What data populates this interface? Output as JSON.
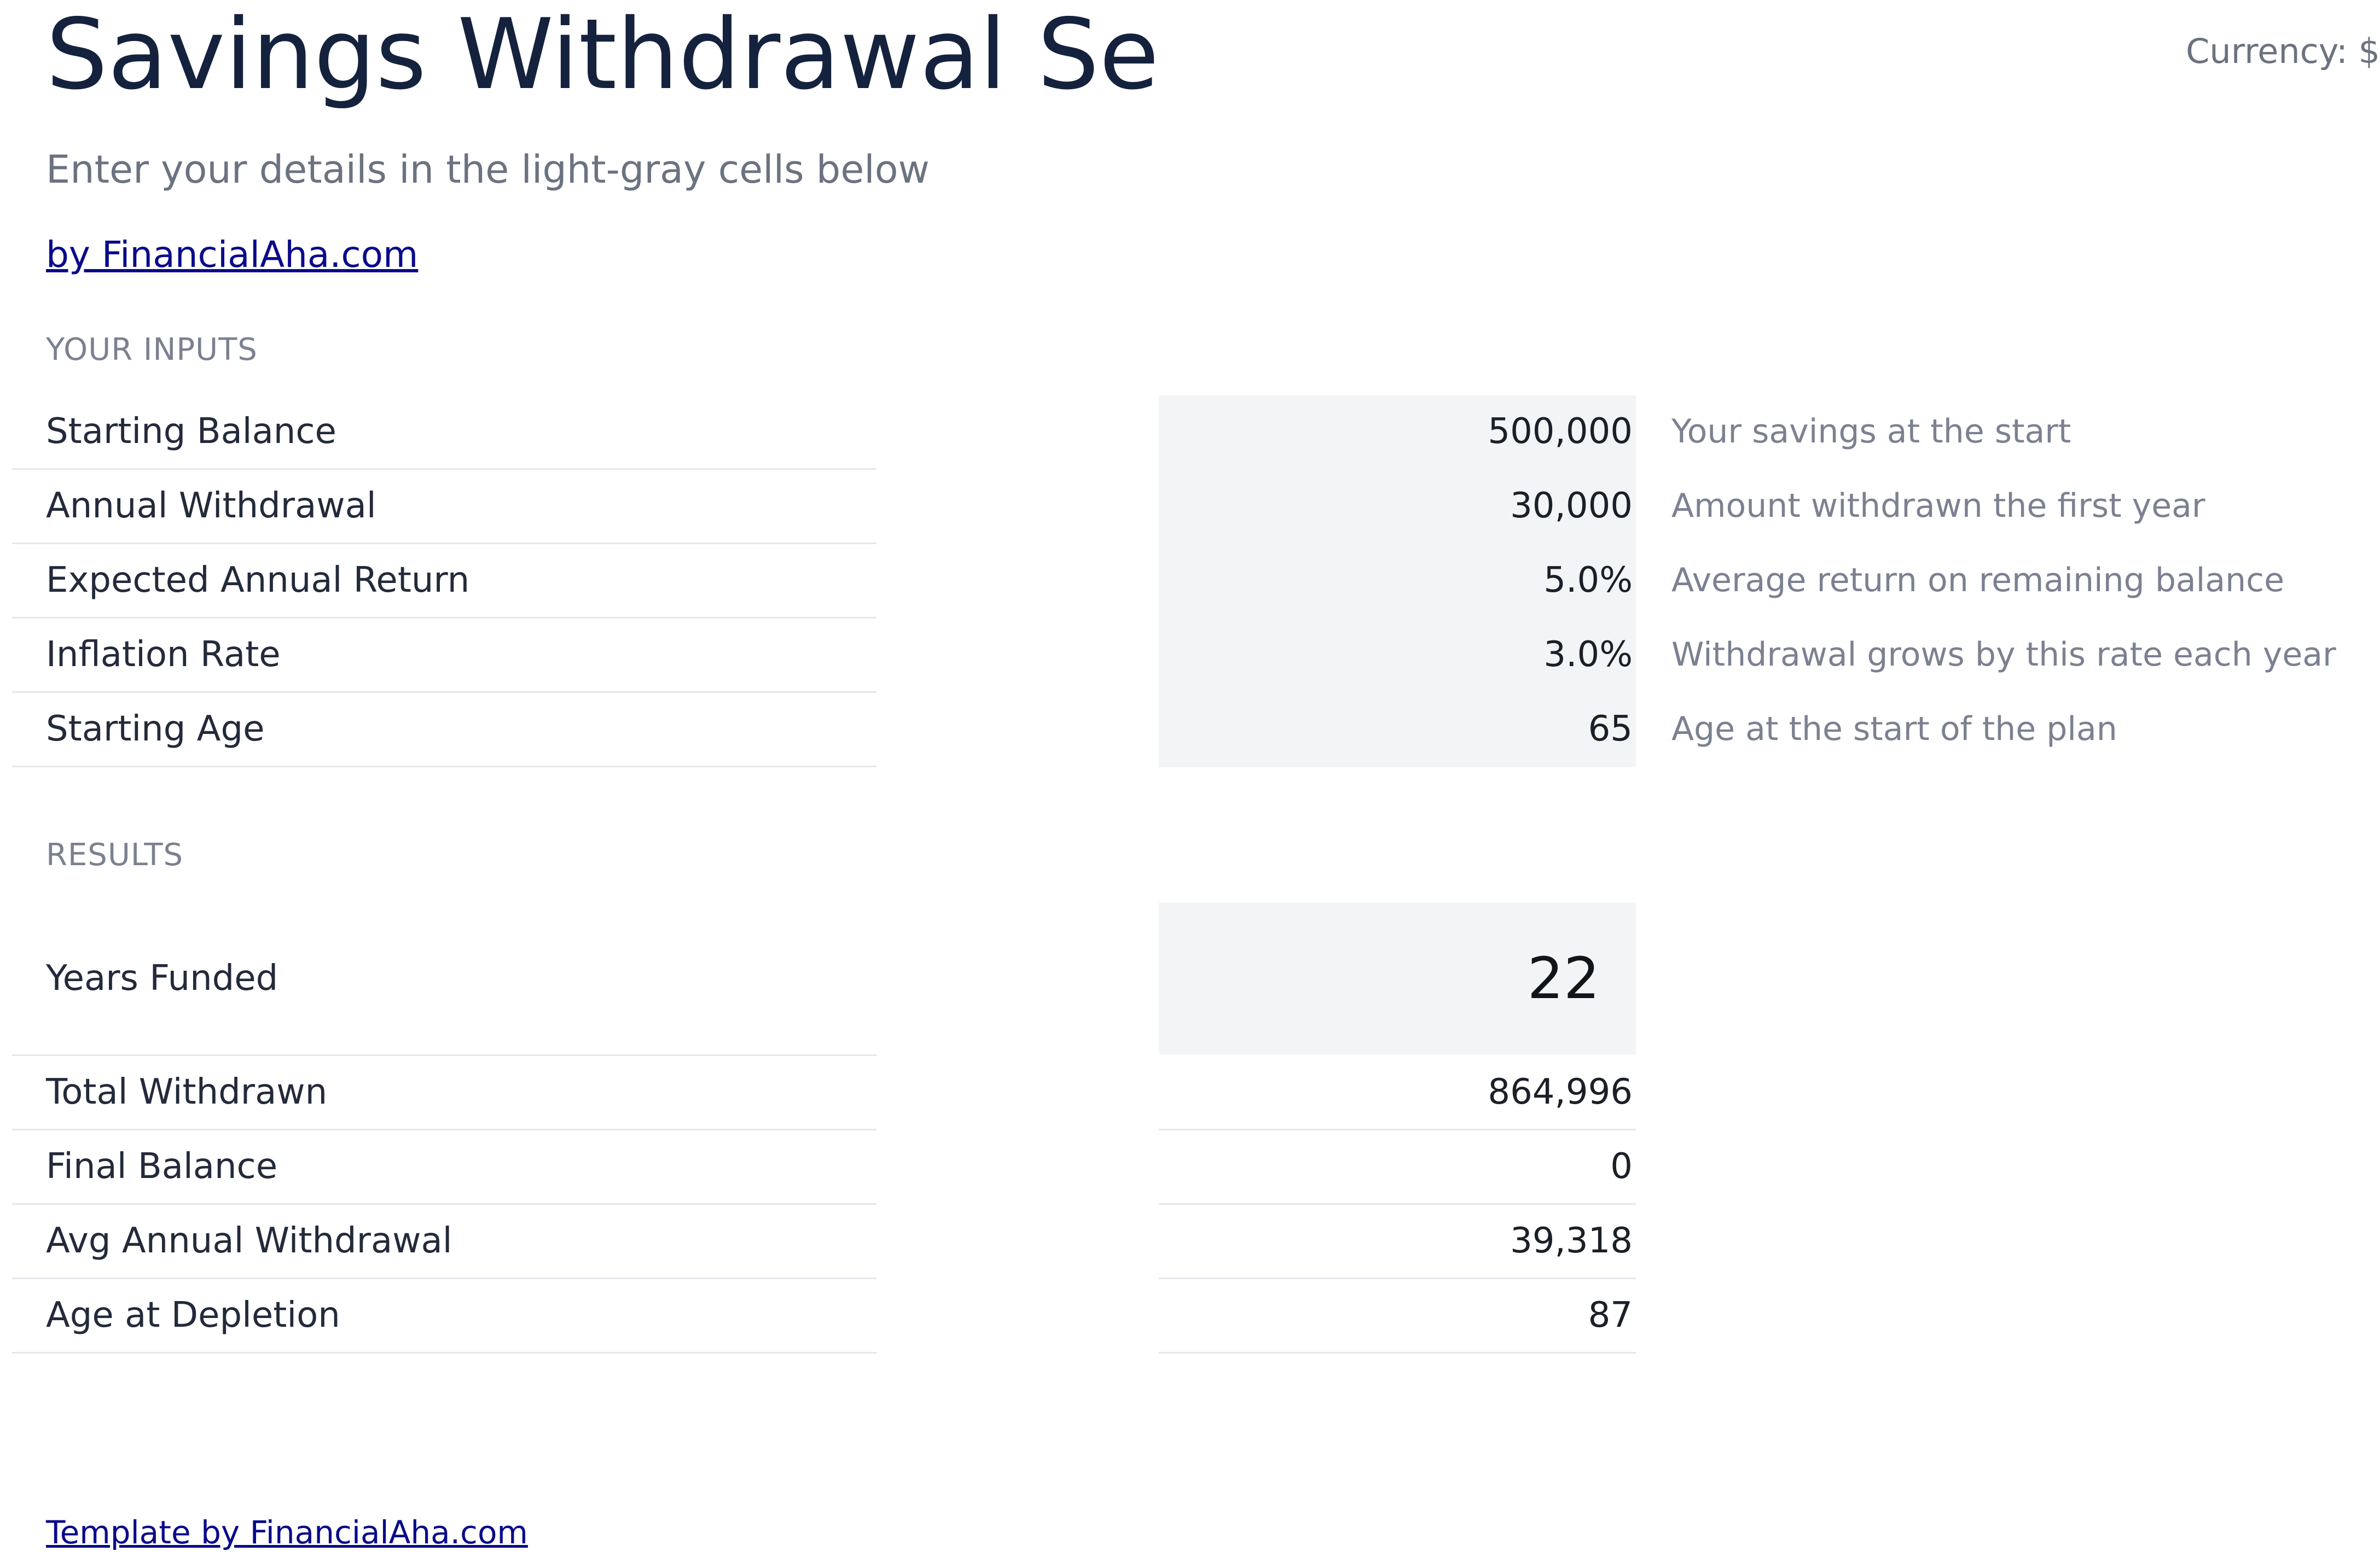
{
  "header": {
    "title": "Savings Withdrawal Se",
    "currency": "Currency: $",
    "subtitle": "Enter your details in the light-gray cells below",
    "brand_link": "by FinancialAha.com"
  },
  "inputs": {
    "section_label": "YOUR INPUTS",
    "rows": [
      {
        "label": "Starting Balance",
        "value": "500,000",
        "note": "Your savings at the start"
      },
      {
        "label": "Annual Withdrawal",
        "value": "30,000",
        "note": "Amount withdrawn the first year"
      },
      {
        "label": "Expected Annual Return",
        "value": "5.0%",
        "note": "Average return on remaining balance"
      },
      {
        "label": "Inflation Rate",
        "value": "3.0%",
        "note": "Withdrawal grows by this rate each year"
      },
      {
        "label": "Starting Age",
        "value": "65",
        "note": "Age at the start of the plan"
      }
    ]
  },
  "results": {
    "section_label": "RESULTS",
    "years_funded": {
      "label": "Years Funded",
      "value": "22"
    },
    "rows": [
      {
        "label": "Total Withdrawn",
        "value": "864,996"
      },
      {
        "label": "Final Balance",
        "value": "0"
      },
      {
        "label": "Avg Annual Withdrawal",
        "value": "39,318"
      },
      {
        "label": "Age at Depletion",
        "value": "87"
      }
    ]
  },
  "footer": {
    "link": "Template by FinancialAha.com"
  },
  "colors": {
    "title": "#15223e",
    "muted": "#6b7280",
    "link": "#0a0a8a",
    "input_fill": "#f3f4f6",
    "row_border": "#e5e7eb"
  }
}
